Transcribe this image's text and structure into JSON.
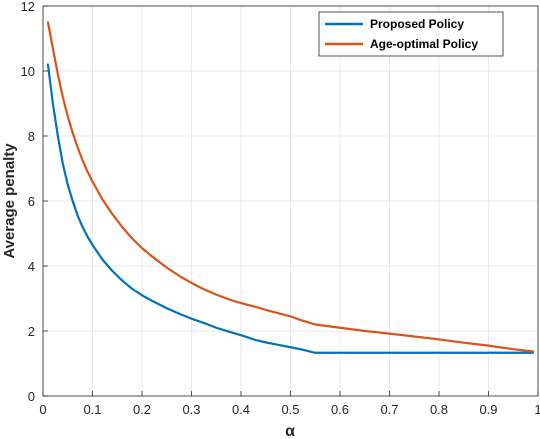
{
  "chart_data": {
    "type": "line",
    "title": "",
    "xlabel": "α",
    "ylabel": "Average penalty",
    "xlim": [
      0,
      1
    ],
    "ylim": [
      0,
      12
    ],
    "grid": true,
    "legend_position": "top-right",
    "xticks": [
      "0",
      "0.1",
      "0.2",
      "0.3",
      "0.4",
      "0.5",
      "0.6",
      "0.7",
      "0.8",
      "0.9",
      "1"
    ],
    "yticks": [
      "0",
      "2",
      "4",
      "6",
      "8",
      "10",
      "12"
    ],
    "series": [
      {
        "name": "Proposed Policy",
        "color": "#0072BD",
        "x": [
          0.01,
          0.02,
          0.03,
          0.04,
          0.05,
          0.06,
          0.07,
          0.08,
          0.09,
          0.1,
          0.12,
          0.14,
          0.16,
          0.18,
          0.2,
          0.22,
          0.25,
          0.28,
          0.3,
          0.33,
          0.35,
          0.38,
          0.4,
          0.43,
          0.45,
          0.48,
          0.5,
          0.52,
          0.55,
          0.6,
          0.65,
          0.7,
          0.75,
          0.8,
          0.85,
          0.9,
          0.95,
          0.99
        ],
        "y": [
          10.2,
          9.0,
          8.0,
          7.15,
          6.5,
          6.0,
          5.55,
          5.2,
          4.9,
          4.65,
          4.2,
          3.85,
          3.55,
          3.3,
          3.1,
          2.93,
          2.7,
          2.5,
          2.38,
          2.22,
          2.1,
          1.96,
          1.87,
          1.72,
          1.65,
          1.56,
          1.5,
          1.44,
          1.33,
          1.33,
          1.33,
          1.33,
          1.33,
          1.33,
          1.33,
          1.33,
          1.33,
          1.33
        ]
      },
      {
        "name": "Age-optimal Policy",
        "color": "#D95319",
        "x": [
          0.01,
          0.02,
          0.03,
          0.04,
          0.05,
          0.06,
          0.07,
          0.08,
          0.09,
          0.1,
          0.12,
          0.14,
          0.16,
          0.18,
          0.2,
          0.22,
          0.25,
          0.28,
          0.3,
          0.32,
          0.35,
          0.38,
          0.4,
          0.43,
          0.45,
          0.48,
          0.5,
          0.52,
          0.55,
          0.6,
          0.65,
          0.7,
          0.75,
          0.8,
          0.85,
          0.9,
          0.95,
          0.99
        ],
        "y": [
          11.5,
          10.7,
          9.9,
          9.2,
          8.6,
          8.1,
          7.65,
          7.25,
          6.9,
          6.6,
          6.05,
          5.6,
          5.2,
          4.85,
          4.55,
          4.3,
          3.95,
          3.65,
          3.48,
          3.32,
          3.12,
          2.95,
          2.86,
          2.74,
          2.65,
          2.53,
          2.45,
          2.34,
          2.2,
          2.1,
          2.0,
          1.92,
          1.83,
          1.74,
          1.64,
          1.55,
          1.44,
          1.37
        ]
      }
    ]
  }
}
